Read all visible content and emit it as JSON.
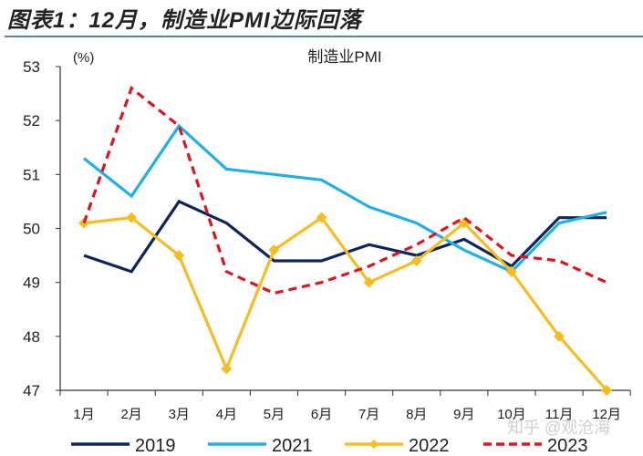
{
  "header": {
    "title": "图表1：12月，制造业PMI边际回落"
  },
  "watermark": "知乎 @观沧海",
  "chart_data": {
    "type": "line",
    "title": "制造业PMI",
    "ylabel": "(%)",
    "xlabel": "",
    "ylim": [
      47,
      53
    ],
    "yticks": [
      "47",
      "48",
      "49",
      "50",
      "51",
      "52",
      "53"
    ],
    "categories": [
      "1月",
      "2月",
      "3月",
      "4月",
      "5月",
      "6月",
      "7月",
      "8月",
      "9月",
      "10月",
      "11月",
      "12月"
    ],
    "grid": false,
    "legend": "bottom",
    "series": [
      {
        "name": "2019",
        "color": "#0d2558",
        "style": "solid",
        "marker": "none",
        "values": [
          49.5,
          49.2,
          50.5,
          50.1,
          49.4,
          49.4,
          49.7,
          49.5,
          49.8,
          49.3,
          50.2,
          50.2
        ]
      },
      {
        "name": "2021",
        "color": "#1fb0e6",
        "style": "solid",
        "marker": "none",
        "values": [
          51.3,
          50.6,
          51.9,
          51.1,
          51.0,
          50.9,
          50.4,
          50.1,
          49.6,
          49.2,
          50.1,
          50.3
        ]
      },
      {
        "name": "2022",
        "color": "#f5bd1f",
        "style": "solid",
        "marker": "diamond",
        "values": [
          50.1,
          50.2,
          49.5,
          47.4,
          49.6,
          50.2,
          49.0,
          49.4,
          50.1,
          49.2,
          48.0,
          47.0
        ]
      },
      {
        "name": "2023",
        "color": "#e0141e",
        "style": "dashed",
        "marker": "none",
        "values": [
          50.1,
          52.6,
          51.9,
          49.2,
          48.8,
          49.0,
          49.3,
          49.7,
          50.2,
          49.5,
          49.4,
          49.0
        ]
      }
    ]
  }
}
